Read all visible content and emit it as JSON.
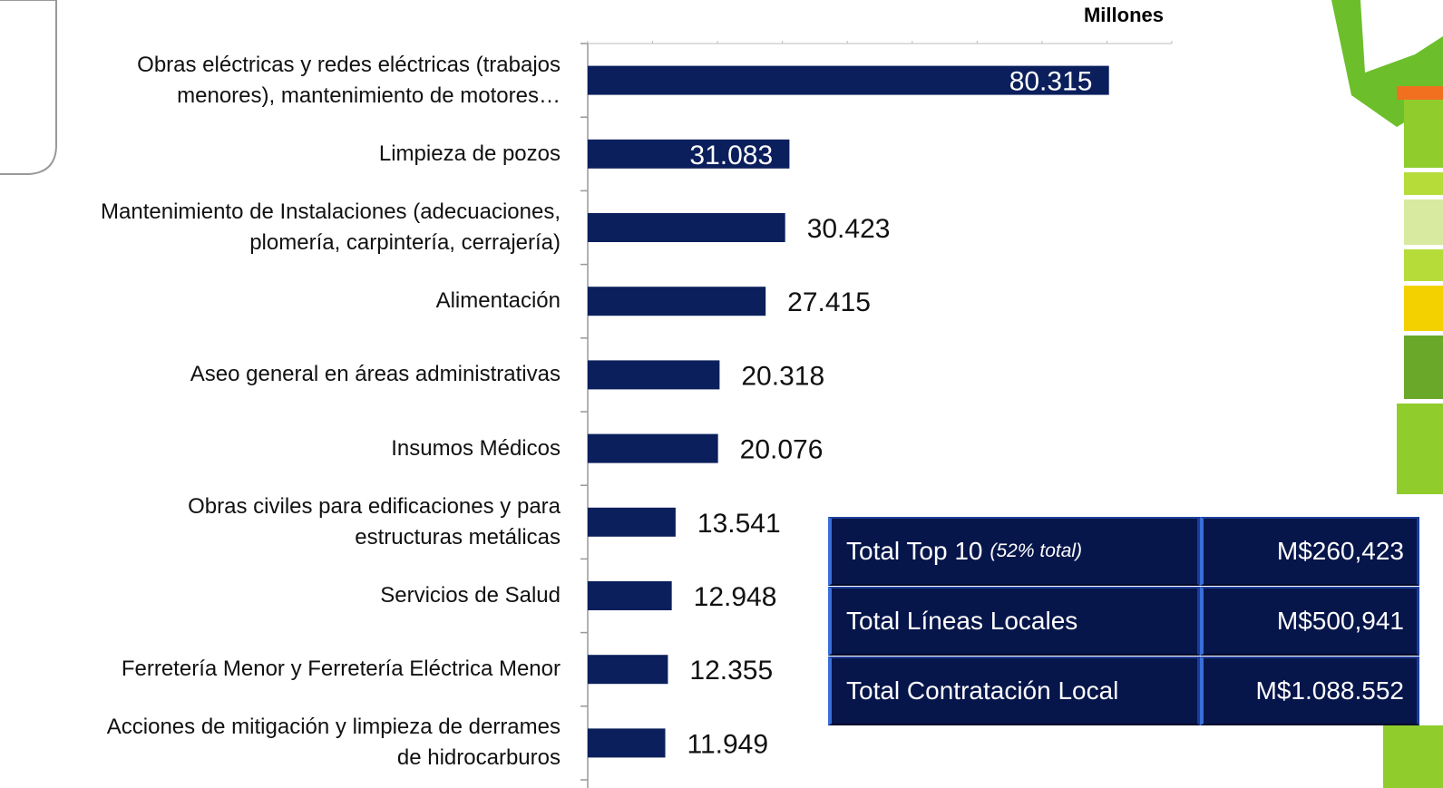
{
  "chart_data": {
    "type": "barh",
    "xlabel": "Millones",
    "categories": [
      "Obras eléctricas y redes eléctricas (trabajos\nmenores), mantenimiento de motores…",
      "Limpieza de pozos",
      "Mantenimiento de Instalaciones (adecuaciones,\nplomería, carpintería, cerrajería)",
      "Alimentación",
      "Aseo general en áreas administrativas",
      "Insumos Médicos",
      "Obras civiles para edificaciones y para\nestructuras metálicas",
      "Servicios de Salud",
      "Ferretería Menor y Ferretería Eléctrica Menor",
      "Acciones de mitigación y limpieza de derrames\nde hidrocarburos"
    ],
    "values": [
      80.315,
      31.083,
      30.423,
      27.415,
      20.318,
      20.076,
      13.541,
      12.948,
      12.355,
      11.949
    ],
    "color": "#0b1f5c",
    "xlim": [
      0,
      90
    ],
    "xticks": [
      0,
      10,
      20,
      30,
      40,
      50,
      60,
      70,
      80,
      90
    ]
  },
  "table": {
    "rows": [
      {
        "label": "Total Top 10",
        "note": "(52% total)",
        "value": "M$260,423"
      },
      {
        "label": "Total Líneas Locales",
        "value": "M$500,941"
      },
      {
        "label": "Total Contratación Local",
        "value": "M$1.088.552"
      }
    ]
  }
}
